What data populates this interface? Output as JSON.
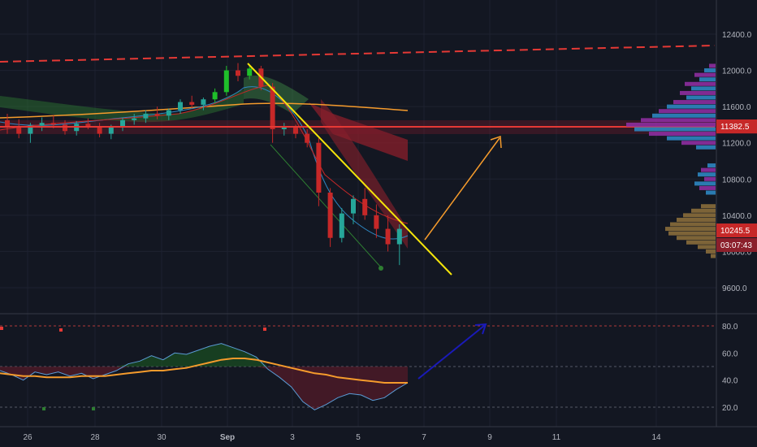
{
  "colors": {
    "background": "#131722",
    "grid": "#1e2230",
    "axis_text": "#b2b5be",
    "up_candle": "#26a69a",
    "up_candle_bright": "#1fbf2a",
    "down_candle": "#c62828",
    "resistance_line": "#e53935",
    "dashed_line": "#e53935",
    "trendline": "#f5e50a",
    "orange_arrow": "#f59b2c",
    "blue_arrow": "#1a1ab8",
    "rsi": "#5b9bd5",
    "rsi_ma": "#f59b2c",
    "price_badge": "#c62828",
    "volume_profile_blue": "#2e86c1",
    "volume_profile_purple": "#8e2ea0",
    "volume_profile_tan": "#8a6d3b"
  },
  "chart_data": [
    {
      "type": "candlestick",
      "panel": "price",
      "price_axis_ticks": [
        "12400.0",
        "12000.0",
        "11600.0",
        "11200.0",
        "10800.0",
        "10400.0",
        "10000.0",
        "9600.0"
      ],
      "ylim": [
        9450,
        12700
      ],
      "x_axis_ticks": [
        "26",
        "28",
        "30",
        "Sep",
        "3",
        "5",
        "7",
        "9",
        "11",
        "14"
      ],
      "resistance_level": 11382.5,
      "current_price": 10245.5,
      "countdown": "03:07:43",
      "badges": {
        "resistance": "11382.5",
        "current": "10245.5",
        "countdown": "03:07:43"
      },
      "candles_ohlc_approx": [
        [
          11450,
          11520,
          11300,
          11380
        ],
        [
          11380,
          11460,
          11250,
          11300
        ],
        [
          11300,
          11420,
          11200,
          11390
        ],
        [
          11390,
          11480,
          11330,
          11420
        ],
        [
          11420,
          11500,
          11360,
          11400
        ],
        [
          11400,
          11450,
          11290,
          11330
        ],
        [
          11330,
          11440,
          11280,
          11410
        ],
        [
          11410,
          11470,
          11350,
          11380
        ],
        [
          11380,
          11420,
          11260,
          11300
        ],
        [
          11300,
          11400,
          11240,
          11370
        ],
        [
          11370,
          11480,
          11330,
          11450
        ],
        [
          11450,
          11520,
          11400,
          11470
        ],
        [
          11470,
          11560,
          11420,
          11520
        ],
        [
          11520,
          11600,
          11460,
          11500
        ],
        [
          11500,
          11580,
          11450,
          11560
        ],
        [
          11560,
          11680,
          11520,
          11650
        ],
        [
          11650,
          11720,
          11580,
          11620
        ],
        [
          11620,
          11700,
          11560,
          11680
        ],
        [
          11680,
          11800,
          11640,
          11760
        ],
        [
          11760,
          12050,
          11720,
          12000
        ],
        [
          12000,
          12080,
          11880,
          11940
        ],
        [
          11940,
          12060,
          11900,
          12020
        ],
        [
          12020,
          12050,
          11780,
          11820
        ],
        [
          11820,
          11860,
          11200,
          11350
        ],
        [
          11350,
          11420,
          11280,
          11380
        ],
        [
          11380,
          11400,
          11250,
          11300
        ],
        [
          11300,
          11350,
          11150,
          11200
        ],
        [
          11200,
          11250,
          10500,
          10650
        ],
        [
          10650,
          10700,
          10050,
          10150
        ],
        [
          10150,
          10480,
          10100,
          10420
        ],
        [
          10420,
          10620,
          10300,
          10580
        ],
        [
          10580,
          10700,
          10350,
          10400
        ],
        [
          10400,
          10520,
          10150,
          10250
        ],
        [
          10250,
          10400,
          10000,
          10080
        ],
        [
          10080,
          10300,
          9850,
          10250
        ]
      ],
      "annotations": [
        "Dashed red ascending line",
        "Solid red horizontal resistance",
        "Yellow descending trendline",
        "Orange arrow up",
        "Volume profile on right"
      ]
    },
    {
      "type": "line",
      "panel": "oscillator",
      "ylim": [
        10,
        90
      ],
      "y_axis_ticks": [
        "80.0",
        "60.0",
        "40.0",
        "20.0"
      ],
      "series": [
        {
          "values": [
            47,
            44,
            40,
            46,
            44,
            46,
            43,
            45,
            41,
            44,
            47,
            52,
            54,
            58,
            55,
            60,
            59,
            62,
            65,
            67,
            64,
            61,
            57,
            48,
            42,
            35,
            24,
            18,
            22,
            27,
            30,
            29,
            25,
            27,
            33,
            38
          ]
        },
        {
          "values": [
            45,
            44,
            43,
            43,
            42,
            42,
            42,
            43,
            43,
            43,
            44,
            45,
            46,
            47,
            47,
            48,
            49,
            51,
            53,
            55,
            56,
            56,
            55,
            53,
            51,
            49,
            47,
            45,
            44,
            42,
            41,
            40,
            39,
            38,
            38,
            38
          ]
        }
      ],
      "levels": [
        80,
        50,
        20
      ]
    }
  ]
}
